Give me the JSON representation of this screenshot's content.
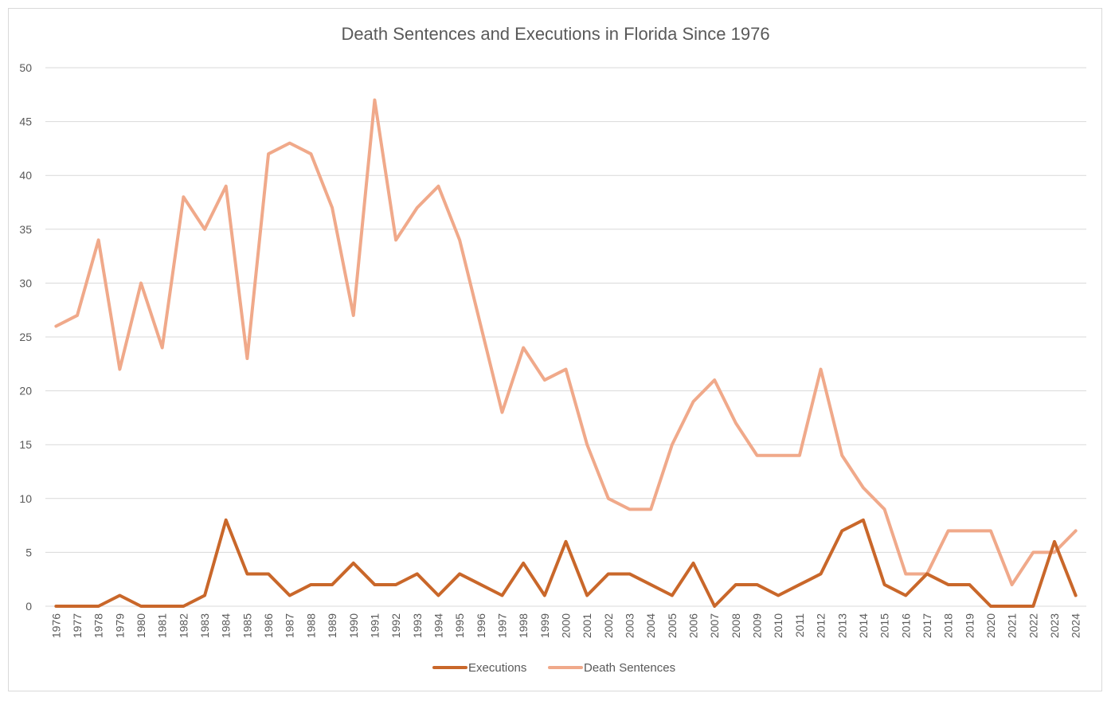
{
  "chart_data": {
    "type": "line",
    "title": "Death Sentences and Executions in Florida Since 1976",
    "xlabel": "",
    "ylabel": "",
    "ylim": [
      0,
      50
    ],
    "yticks": [
      0,
      5,
      10,
      15,
      20,
      25,
      30,
      35,
      40,
      45,
      50
    ],
    "grid": true,
    "legend_position": "bottom",
    "categories": [
      "1976",
      "1977",
      "1978",
      "1979",
      "1980",
      "1981",
      "1982",
      "1983",
      "1984",
      "1985",
      "1986",
      "1987",
      "1988",
      "1989",
      "1990",
      "1991",
      "1992",
      "1993",
      "1994",
      "1995",
      "1996",
      "1997",
      "1998",
      "1999",
      "2000",
      "2001",
      "2002",
      "2003",
      "2004",
      "2005",
      "2006",
      "2007",
      "2008",
      "2009",
      "2010",
      "2011",
      "2012",
      "2013",
      "2014",
      "2015",
      "2016",
      "2017",
      "2018",
      "2019",
      "2020",
      "2021",
      "2022",
      "2023",
      "2024"
    ],
    "series": [
      {
        "name": "Executions",
        "color": "#c9672a",
        "values": [
          0,
          0,
          0,
          1,
          0,
          0,
          0,
          1,
          8,
          3,
          3,
          1,
          2,
          2,
          4,
          2,
          2,
          3,
          1,
          3,
          2,
          1,
          4,
          1,
          6,
          1,
          3,
          3,
          2,
          1,
          4,
          0,
          2,
          2,
          1,
          2,
          3,
          7,
          8,
          2,
          1,
          3,
          2,
          2,
          0,
          0,
          0,
          6,
          1
        ]
      },
      {
        "name": "Death Sentences",
        "color": "#f0a98a",
        "values": [
          26,
          27,
          34,
          22,
          30,
          24,
          38,
          35,
          39,
          23,
          42,
          43,
          42,
          37,
          27,
          47,
          34,
          37,
          39,
          34,
          26,
          18,
          24,
          21,
          22,
          15,
          10,
          9,
          9,
          15,
          19,
          21,
          17,
          14,
          14,
          14,
          22,
          14,
          11,
          9,
          3,
          3,
          7,
          7,
          7,
          2,
          5,
          5,
          7
        ]
      }
    ]
  }
}
